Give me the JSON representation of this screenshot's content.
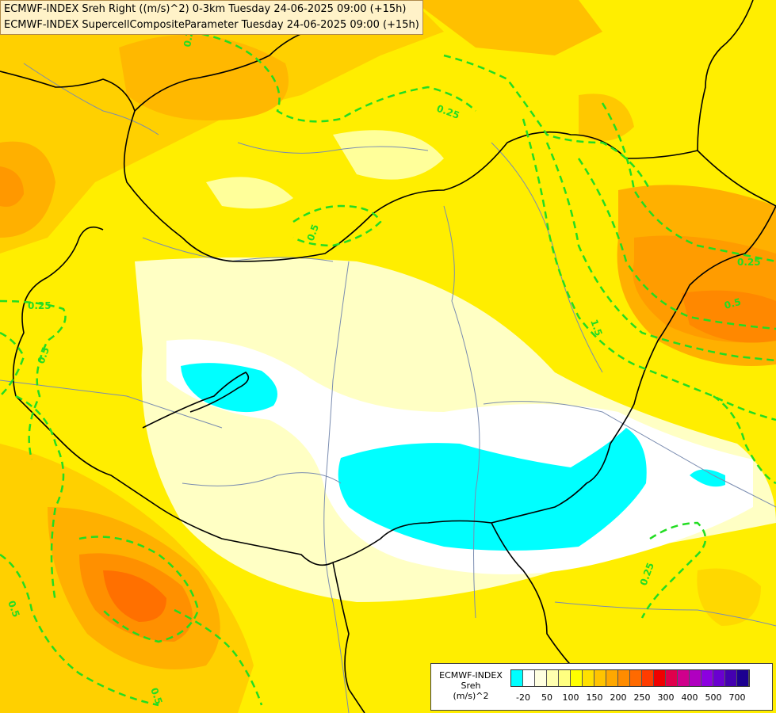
{
  "header": {
    "line1": "ECMWF-INDEX Sreh Right ((m/s)^2) 0-3km Tuesday 24-06-2025 09:00 (+15h)",
    "line2": "ECMWF-INDEX SupercellCompositeParameter Tuesday 24-06-2025 09:00 (+15h)"
  },
  "contour_labels": [
    "0.25",
    "0.25",
    "0.25",
    "0.25",
    "0.25",
    "0.5",
    "0.5",
    "0.5",
    "0.5",
    "1.5",
    "0.5"
  ],
  "legend": {
    "title_line1": "ECMWF-INDEX",
    "title_line2": "Sreh",
    "title_line3": "(m/s)^2",
    "colors": [
      "#00ffff",
      "#ffffff",
      "#ffffe0",
      "#ffffb0",
      "#ffff80",
      "#ffff00",
      "#ffe000",
      "#ffc400",
      "#ffa800",
      "#ff8c00",
      "#ff6a00",
      "#ff3c00",
      "#f00000",
      "#e0004c",
      "#d0008c",
      "#b000c0",
      "#8c00e0",
      "#6a00d0",
      "#4400b0",
      "#1c0090"
    ],
    "ticks": [
      "-20",
      "50",
      "100",
      "150",
      "200",
      "250",
      "300",
      "400",
      "500",
      "700"
    ]
  }
}
